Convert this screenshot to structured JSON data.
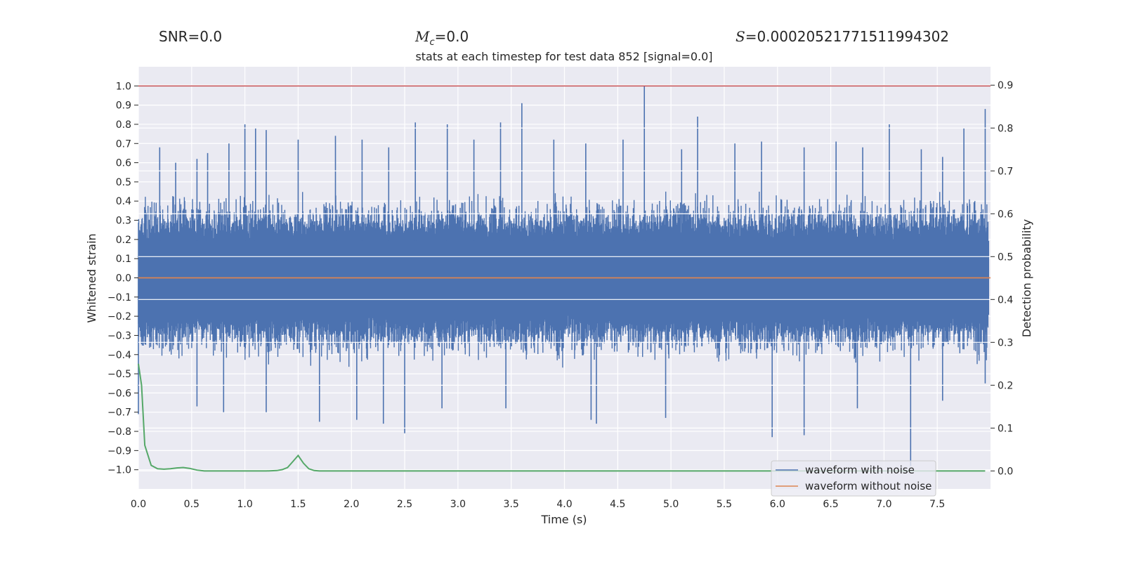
{
  "header": {
    "snr_label": "SNR=0.0",
    "mc_symbol": "M",
    "mc_subscript": "c",
    "mc_value": "=0.0",
    "s_symbol": "S",
    "s_value": "=0.00020521771511994302"
  },
  "chart_data": {
    "type": "line",
    "title": "stats at each timestep for test data 852 [signal=0.0]",
    "xlabel": "Time (s)",
    "ylabel": "Whitened strain",
    "y2label": "Detection probability",
    "xlim": [
      0.0,
      8.0
    ],
    "ylim": [
      -1.1,
      1.1
    ],
    "y2lim": [
      -0.042,
      0.943
    ],
    "x_ticks": [
      0.0,
      0.5,
      1.0,
      1.5,
      2.0,
      2.5,
      3.0,
      3.5,
      4.0,
      4.5,
      5.0,
      5.5,
      6.0,
      6.5,
      7.0,
      7.5
    ],
    "x_tick_labels": [
      "0.0",
      "0.5",
      "1.0",
      "1.5",
      "2.0",
      "2.5",
      "3.0",
      "3.5",
      "4.0",
      "4.5",
      "5.0",
      "5.5",
      "6.0",
      "6.5",
      "7.0",
      "7.5"
    ],
    "y_ticks": [
      1.0,
      0.9,
      0.8,
      0.7,
      0.6,
      0.5,
      0.4,
      0.3,
      0.2,
      0.1,
      0.0,
      -0.1,
      -0.2,
      -0.3,
      -0.4,
      -0.5,
      -0.6,
      -0.7,
      -0.8,
      -0.9,
      -1.0
    ],
    "y_tick_labels": [
      "1.0",
      "0.9",
      "0.8",
      "0.7",
      "0.6",
      "0.5",
      "0.4",
      "0.3",
      "0.2",
      "0.1",
      "0.0",
      "−0.1",
      "−0.2",
      "−0.3",
      "−0.4",
      "−0.5",
      "−0.6",
      "−0.7",
      "−0.8",
      "−0.9",
      "−1.0"
    ],
    "y2_ticks": [
      0.9,
      0.8,
      0.7,
      0.6,
      0.5,
      0.4,
      0.3,
      0.2,
      0.1,
      0.0
    ],
    "y2_tick_labels": [
      "0.9",
      "0.8",
      "0.7",
      "0.6",
      "0.5",
      "0.4",
      "0.3",
      "0.2",
      "0.1",
      "0.0"
    ],
    "grid": true,
    "legend_position": "bottom-right",
    "colors": {
      "background": "#eaeaf2",
      "grid": "#ffffff",
      "noisy": "#4c72b0",
      "clean": "#dd8452",
      "probability": "#55a868",
      "threshold": "#c44e52"
    },
    "threshold_y": 1.0,
    "series": [
      {
        "name": "waveform with noise",
        "kind": "noise-envelope",
        "approx_upper_spike_peaks": [
          [
            0.2,
            0.68
          ],
          [
            0.35,
            0.6
          ],
          [
            0.55,
            0.62
          ],
          [
            0.65,
            0.65
          ],
          [
            0.85,
            0.7
          ],
          [
            1.0,
            0.8
          ],
          [
            1.1,
            0.78
          ],
          [
            1.2,
            0.77
          ],
          [
            1.5,
            0.72
          ],
          [
            1.85,
            0.74
          ],
          [
            2.1,
            0.72
          ],
          [
            2.35,
            0.68
          ],
          [
            2.6,
            0.81
          ],
          [
            2.9,
            0.8
          ],
          [
            3.15,
            0.72
          ],
          [
            3.4,
            0.81
          ],
          [
            3.6,
            0.91
          ],
          [
            3.9,
            0.72
          ],
          [
            4.2,
            0.7
          ],
          [
            4.55,
            0.72
          ],
          [
            4.75,
            1.0
          ],
          [
            5.1,
            0.67
          ],
          [
            5.25,
            0.84
          ],
          [
            5.6,
            0.7
          ],
          [
            5.85,
            0.71
          ],
          [
            6.25,
            0.68
          ],
          [
            6.55,
            0.71
          ],
          [
            6.8,
            0.68
          ],
          [
            7.05,
            0.8
          ],
          [
            7.35,
            0.67
          ],
          [
            7.55,
            0.63
          ],
          [
            7.75,
            0.78
          ],
          [
            7.95,
            0.88
          ]
        ],
        "approx_lower_spike_peaks": [
          [
            0.0,
            -0.71
          ],
          [
            0.55,
            -0.67
          ],
          [
            0.8,
            -0.7
          ],
          [
            1.2,
            -0.7
          ],
          [
            1.7,
            -0.75
          ],
          [
            2.05,
            -0.74
          ],
          [
            2.3,
            -0.76
          ],
          [
            2.5,
            -0.81
          ],
          [
            2.85,
            -0.68
          ],
          [
            3.45,
            -0.68
          ],
          [
            4.25,
            -0.74
          ],
          [
            4.3,
            -0.76
          ],
          [
            4.95,
            -0.73
          ],
          [
            5.95,
            -0.83
          ],
          [
            6.25,
            -0.82
          ],
          [
            6.75,
            -0.68
          ],
          [
            7.25,
            -0.98
          ],
          [
            7.55,
            -0.64
          ],
          [
            7.95,
            -0.55
          ]
        ],
        "typical_band": [
          -0.35,
          0.35
        ]
      },
      {
        "name": "waveform without noise",
        "x": [
          0.0,
          8.0
        ],
        "y": [
          0.0,
          0.0
        ]
      },
      {
        "name": "detection probability",
        "axis": "right",
        "x": [
          0.0,
          0.03,
          0.06,
          0.12,
          0.18,
          0.24,
          0.3,
          0.36,
          0.42,
          0.48,
          0.55,
          0.62,
          0.7,
          0.8,
          0.9,
          1.0,
          1.1,
          1.2,
          1.3,
          1.35,
          1.4,
          1.45,
          1.5,
          1.55,
          1.6,
          1.65,
          1.7,
          2.0,
          3.0,
          4.0,
          5.0,
          6.0,
          7.0,
          7.95
        ],
        "y": [
          0.25,
          0.2,
          0.06,
          0.013,
          0.005,
          0.004,
          0.005,
          0.007,
          0.008,
          0.006,
          0.002,
          0.0,
          0.0,
          0.0,
          0.0,
          0.0,
          0.0,
          0.0,
          0.001,
          0.003,
          0.008,
          0.022,
          0.036,
          0.018,
          0.005,
          0.001,
          0.0,
          0.0,
          0.0,
          0.0,
          0.0,
          0.0,
          0.0,
          0.0
        ]
      }
    ]
  }
}
